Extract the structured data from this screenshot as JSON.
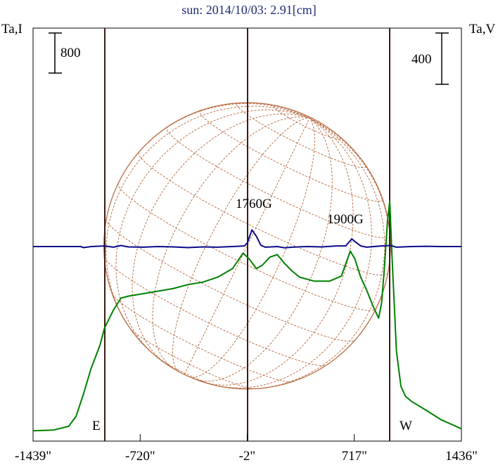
{
  "chart_data": {
    "type": "line",
    "title": "sun: 2014/10/03: 2.91[cm]",
    "left_axis_label": "Ta,I",
    "right_axis_label": "Ta,V",
    "left_scale_bar": "800",
    "right_scale_bar": "400",
    "x_ticks": [
      {
        "value": -1439,
        "label": "-1439\""
      },
      {
        "value": -720,
        "label": "-720\""
      },
      {
        "value": -2,
        "label": "-2\""
      },
      {
        "value": 717,
        "label": "717\""
      },
      {
        "value": 1436,
        "label": "1436\""
      }
    ],
    "xlim": [
      -1439,
      1436
    ],
    "limb_markers": [
      {
        "label": "E",
        "x": -960
      },
      {
        "label": "W",
        "x": 960
      }
    ],
    "center_line_x": -2,
    "annotations": [
      {
        "text": "1760G",
        "x": 60
      },
      {
        "text": "1900G",
        "x": 700
      }
    ],
    "series": [
      {
        "color": "#008000",
        "axis": "left",
        "points": [
          [
            -1439,
            10
          ],
          [
            -1300,
            25
          ],
          [
            -1200,
            100
          ],
          [
            -1150,
            300
          ],
          [
            -1100,
            750
          ],
          [
            -1050,
            1250
          ],
          [
            -990,
            1720
          ],
          [
            -960,
            2060
          ],
          [
            -900,
            2420
          ],
          [
            -850,
            2660
          ],
          [
            -800,
            2700
          ],
          [
            -700,
            2750
          ],
          [
            -600,
            2800
          ],
          [
            -500,
            2850
          ],
          [
            -400,
            2930
          ],
          [
            -300,
            2980
          ],
          [
            -200,
            3080
          ],
          [
            -100,
            3250
          ],
          [
            -30,
            3560
          ],
          [
            10,
            3450
          ],
          [
            60,
            3250
          ],
          [
            100,
            3320
          ],
          [
            150,
            3480
          ],
          [
            200,
            3530
          ],
          [
            250,
            3350
          ],
          [
            300,
            3200
          ],
          [
            350,
            3080
          ],
          [
            450,
            3000
          ],
          [
            550,
            3000
          ],
          [
            630,
            3100
          ],
          [
            690,
            3600
          ],
          [
            720,
            3450
          ],
          [
            760,
            3080
          ],
          [
            800,
            2820
          ],
          [
            840,
            2520
          ],
          [
            880,
            2260
          ],
          [
            900,
            2560
          ],
          [
            920,
            3300
          ],
          [
            940,
            4200
          ],
          [
            955,
            4600
          ],
          [
            970,
            3500
          ],
          [
            1000,
            1600
          ],
          [
            1030,
            900
          ],
          [
            1060,
            700
          ],
          [
            1100,
            600
          ],
          [
            1200,
            420
          ],
          [
            1300,
            230
          ],
          [
            1436,
            50
          ]
        ]
      },
      {
        "color": "#0a0a8a",
        "axis": "right",
        "points": [
          [
            -1439,
            0
          ],
          [
            -1120,
            0
          ],
          [
            -1100,
            -8
          ],
          [
            -1050,
            0
          ],
          [
            -960,
            5
          ],
          [
            -900,
            -5
          ],
          [
            -850,
            8
          ],
          [
            -800,
            -3
          ],
          [
            -700,
            -5
          ],
          [
            -600,
            0
          ],
          [
            -500,
            -3
          ],
          [
            -400,
            -8
          ],
          [
            -300,
            -3
          ],
          [
            -200,
            -5
          ],
          [
            -100,
            0
          ],
          [
            -20,
            5
          ],
          [
            0,
            30
          ],
          [
            30,
            130
          ],
          [
            60,
            80
          ],
          [
            90,
            10
          ],
          [
            120,
            -5
          ],
          [
            200,
            0
          ],
          [
            250,
            -10
          ],
          [
            300,
            -5
          ],
          [
            400,
            0
          ],
          [
            500,
            -3
          ],
          [
            600,
            5
          ],
          [
            660,
            5
          ],
          [
            700,
            60
          ],
          [
            720,
            40
          ],
          [
            760,
            5
          ],
          [
            800,
            -5
          ],
          [
            900,
            5
          ],
          [
            960,
            8
          ],
          [
            1000,
            -5
          ],
          [
            1100,
            0
          ],
          [
            1200,
            2
          ],
          [
            1300,
            0
          ],
          [
            1436,
            0
          ]
        ]
      }
    ],
    "grid": false
  }
}
